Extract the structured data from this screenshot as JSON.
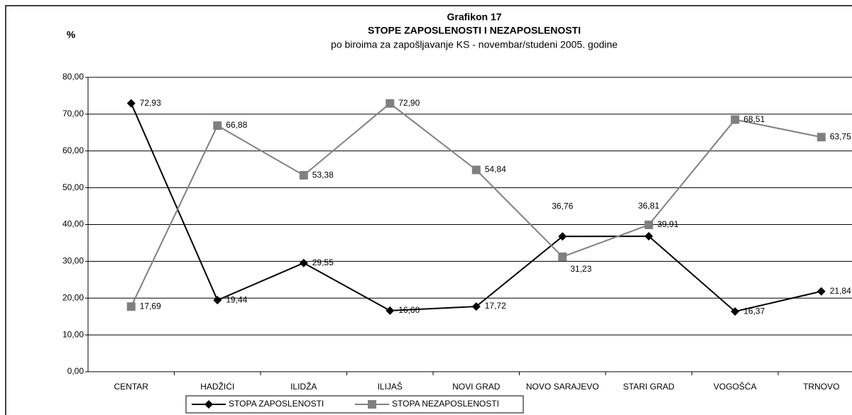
{
  "chart_data": {
    "type": "line",
    "title": "Grafikon 17",
    "subtitle": "STOPE ZAPOSLENOSTI I NEZAPOSLENOSTI",
    "caption": "po biroima za zapošljavanje KS - novembar/studeni 2005. godine",
    "y_label": "%",
    "categories": [
      "CENTAR",
      "HADŽIĆI",
      "ILIDŽA",
      "ILIJAŠ",
      "NOVI GRAD",
      "NOVO SARAJEVO",
      "STARI GRAD",
      "VOGOŠĆA",
      "TRNOVO"
    ],
    "series": [
      {
        "name": "STOPA ZAPOSLENOSTI",
        "color": "#000000",
        "marker": "diamond",
        "values": [
          72.93,
          19.44,
          29.55,
          16.6,
          17.72,
          36.76,
          36.81,
          16.37,
          21.84
        ],
        "value_labels": [
          "72,93",
          "19,44",
          "29,55",
          "16,60",
          "17,72",
          "36,76",
          "36,81",
          "16,37",
          "21,84"
        ]
      },
      {
        "name": "STOPA NEZAPOSLENOSTI",
        "color": "#808080",
        "marker": "square",
        "values": [
          17.69,
          66.88,
          53.38,
          72.9,
          54.84,
          31.23,
          39.91,
          68.51,
          63.75
        ],
        "value_labels": [
          "17,69",
          "66,88",
          "53,38",
          "72,90",
          "54,84",
          "31,23",
          "39,91",
          "68,51",
          "63,75"
        ]
      }
    ],
    "ylim": [
      0,
      80
    ],
    "yticks": [
      {
        "value": 0,
        "label": "0,00"
      },
      {
        "value": 10,
        "label": "10,00"
      },
      {
        "value": 20,
        "label": "20,00"
      },
      {
        "value": 30,
        "label": "30,00"
      },
      {
        "value": 40,
        "label": "40,00"
      },
      {
        "value": 50,
        "label": "50,00"
      },
      {
        "value": 60,
        "label": "60,00"
      },
      {
        "value": 70,
        "label": "70,00"
      },
      {
        "value": 80,
        "label": "80,00"
      }
    ],
    "grid": true
  }
}
